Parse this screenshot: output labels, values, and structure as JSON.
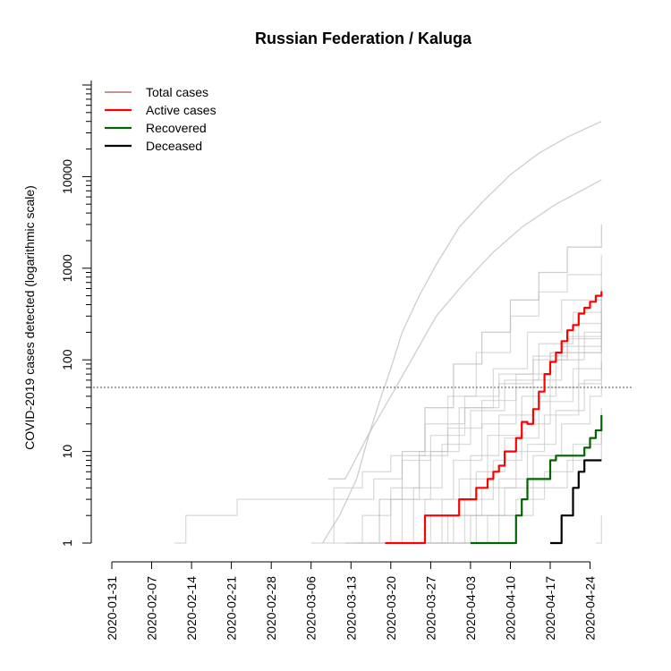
{
  "chart_data": {
    "type": "line",
    "title": "Russian Federation / Kaluga",
    "ylabel": "COVID-2019 cases detected (logarithmic scale)",
    "xlabel": "",
    "y_scale": "log",
    "ylim": [
      1,
      100000
    ],
    "xlim": [
      "2020-01-31",
      "2020-04-28"
    ],
    "y_ticks": [
      1,
      10,
      100,
      1000,
      10000
    ],
    "y_tick_labels": [
      "1",
      "10",
      "100",
      "1000",
      "10000"
    ],
    "x_ticks": [
      "2020-01-31",
      "2020-02-07",
      "2020-02-14",
      "2020-02-21",
      "2020-02-28",
      "2020-03-06",
      "2020-03-13",
      "2020-03-20",
      "2020-03-27",
      "2020-04-03",
      "2020-04-10",
      "2020-04-17",
      "2020-04-24"
    ],
    "threshold": 50,
    "legend_position": "top-left",
    "legend": [
      {
        "label": "Total cases",
        "color": "#a0524d"
      },
      {
        "label": "Active cases",
        "color": "#ff0000"
      },
      {
        "label": "Recovered",
        "color": "#006400"
      },
      {
        "label": "Deceased",
        "color": "#000000"
      }
    ],
    "series": [
      {
        "name": "Active cases",
        "color": "#ff0000",
        "points": [
          [
            "2020-03-19",
            1
          ],
          [
            "2020-03-25",
            1
          ],
          [
            "2020-03-26",
            2
          ],
          [
            "2020-03-31",
            2
          ],
          [
            "2020-04-01",
            3
          ],
          [
            "2020-04-03",
            3
          ],
          [
            "2020-04-04",
            4
          ],
          [
            "2020-04-05",
            4
          ],
          [
            "2020-04-06",
            5
          ],
          [
            "2020-04-07",
            6
          ],
          [
            "2020-04-08",
            7
          ],
          [
            "2020-04-09",
            10
          ],
          [
            "2020-04-10",
            10
          ],
          [
            "2020-04-11",
            14
          ],
          [
            "2020-04-12",
            21
          ],
          [
            "2020-04-13",
            20
          ],
          [
            "2020-04-14",
            29
          ],
          [
            "2020-04-15",
            45
          ],
          [
            "2020-04-16",
            70
          ],
          [
            "2020-04-17",
            95
          ],
          [
            "2020-04-18",
            120
          ],
          [
            "2020-04-19",
            160
          ],
          [
            "2020-04-20",
            210
          ],
          [
            "2020-04-21",
            240
          ],
          [
            "2020-04-22",
            320
          ],
          [
            "2020-04-23",
            370
          ],
          [
            "2020-04-24",
            430
          ],
          [
            "2020-04-25",
            500
          ],
          [
            "2020-04-26",
            560
          ]
        ]
      },
      {
        "name": "Recovered",
        "color": "#006400",
        "points": [
          [
            "2020-04-03",
            1
          ],
          [
            "2020-04-10",
            1
          ],
          [
            "2020-04-11",
            2
          ],
          [
            "2020-04-12",
            3
          ],
          [
            "2020-04-13",
            5
          ],
          [
            "2020-04-16",
            5
          ],
          [
            "2020-04-17",
            8
          ],
          [
            "2020-04-18",
            9
          ],
          [
            "2020-04-22",
            9
          ],
          [
            "2020-04-23",
            11
          ],
          [
            "2020-04-24",
            14
          ],
          [
            "2020-04-25",
            17
          ],
          [
            "2020-04-26",
            25
          ]
        ]
      },
      {
        "name": "Deceased",
        "color": "#000000",
        "points": [
          [
            "2020-04-17",
            1
          ],
          [
            "2020-04-18",
            1
          ],
          [
            "2020-04-19",
            2
          ],
          [
            "2020-04-20",
            2
          ],
          [
            "2020-04-21",
            4
          ],
          [
            "2020-04-22",
            6
          ],
          [
            "2020-04-23",
            8
          ],
          [
            "2020-04-26",
            8
          ]
        ]
      }
    ],
    "background_series_color": "#bdbdbd",
    "background_series": [
      [
        [
          "2020-03-08",
          1
        ],
        [
          "2020-03-11",
          2
        ],
        [
          "2020-03-14",
          5
        ],
        [
          "2020-03-16",
          14
        ],
        [
          "2020-03-18",
          35
        ],
        [
          "2020-03-20",
          80
        ],
        [
          "2020-03-22",
          200
        ],
        [
          "2020-03-25",
          500
        ],
        [
          "2020-03-28",
          1100
        ],
        [
          "2020-04-01",
          2800
        ],
        [
          "2020-04-05",
          5200
        ],
        [
          "2020-04-10",
          10500
        ],
        [
          "2020-04-15",
          18000
        ],
        [
          "2020-04-20",
          27000
        ],
        [
          "2020-04-26",
          40000
        ]
      ],
      [
        [
          "2020-03-09",
          5
        ],
        [
          "2020-03-12",
          5
        ],
        [
          "2020-03-16",
          15
        ],
        [
          "2020-03-20",
          40
        ],
        [
          "2020-03-24",
          110
        ],
        [
          "2020-03-28",
          300
        ],
        [
          "2020-04-02",
          700
        ],
        [
          "2020-04-07",
          1500
        ],
        [
          "2020-04-12",
          2800
        ],
        [
          "2020-04-18",
          5000
        ],
        [
          "2020-04-26",
          9200
        ]
      ],
      [
        [
          "2020-03-12",
          1
        ],
        [
          "2020-03-18",
          3
        ],
        [
          "2020-03-22",
          10
        ],
        [
          "2020-03-26",
          30
        ],
        [
          "2020-03-31",
          90
        ],
        [
          "2020-04-05",
          200
        ],
        [
          "2020-04-10",
          450
        ],
        [
          "2020-04-15",
          900
        ],
        [
          "2020-04-20",
          1700
        ],
        [
          "2020-04-26",
          3000
        ]
      ],
      [
        [
          "2020-03-14",
          1
        ],
        [
          "2020-03-20",
          3
        ],
        [
          "2020-03-25",
          10
        ],
        [
          "2020-03-30",
          40
        ],
        [
          "2020-04-04",
          120
        ],
        [
          "2020-04-10",
          300
        ],
        [
          "2020-04-15",
          550
        ],
        [
          "2020-04-20",
          850
        ],
        [
          "2020-04-26",
          1400
        ]
      ],
      [
        [
          "2020-03-16",
          1
        ],
        [
          "2020-03-22",
          3
        ],
        [
          "2020-03-27",
          10
        ],
        [
          "2020-04-01",
          30
        ],
        [
          "2020-04-07",
          80
        ],
        [
          "2020-04-13",
          200
        ],
        [
          "2020-04-19",
          450
        ],
        [
          "2020-04-26",
          900
        ]
      ],
      [
        [
          "2020-03-18",
          1
        ],
        [
          "2020-03-24",
          4
        ],
        [
          "2020-03-29",
          12
        ],
        [
          "2020-04-03",
          28
        ],
        [
          "2020-04-09",
          60
        ],
        [
          "2020-04-15",
          150
        ],
        [
          "2020-04-21",
          330
        ],
        [
          "2020-04-26",
          620
        ]
      ],
      [
        [
          "2020-03-20",
          1
        ],
        [
          "2020-03-26",
          3
        ],
        [
          "2020-03-31",
          8
        ],
        [
          "2020-04-05",
          20
        ],
        [
          "2020-04-11",
          50
        ],
        [
          "2020-04-17",
          120
        ],
        [
          "2020-04-22",
          250
        ],
        [
          "2020-04-26",
          480
        ]
      ],
      [
        [
          "2020-03-21",
          1
        ],
        [
          "2020-03-27",
          2
        ],
        [
          "2020-04-01",
          5
        ],
        [
          "2020-04-06",
          15
        ],
        [
          "2020-04-12",
          40
        ],
        [
          "2020-04-18",
          100
        ],
        [
          "2020-04-23",
          200
        ],
        [
          "2020-04-26",
          330
        ]
      ],
      [
        [
          "2020-03-23",
          1
        ],
        [
          "2020-03-29",
          3
        ],
        [
          "2020-04-03",
          9
        ],
        [
          "2020-04-08",
          25
        ],
        [
          "2020-04-14",
          60
        ],
        [
          "2020-04-19",
          140
        ],
        [
          "2020-04-26",
          380
        ]
      ],
      [
        [
          "2020-03-24",
          1
        ],
        [
          "2020-03-30",
          2
        ],
        [
          "2020-04-04",
          6
        ],
        [
          "2020-04-09",
          14
        ],
        [
          "2020-04-15",
          35
        ],
        [
          "2020-04-21",
          80
        ],
        [
          "2020-04-26",
          160
        ]
      ],
      [
        [
          "2020-03-25",
          1
        ],
        [
          "2020-03-31",
          2
        ],
        [
          "2020-04-05",
          4
        ],
        [
          "2020-04-11",
          10
        ],
        [
          "2020-04-16",
          25
        ],
        [
          "2020-04-22",
          55
        ],
        [
          "2020-04-26",
          100
        ]
      ],
      [
        [
          "2020-03-27",
          1
        ],
        [
          "2020-04-02",
          3
        ],
        [
          "2020-04-07",
          8
        ],
        [
          "2020-04-12",
          20
        ],
        [
          "2020-04-17",
          50
        ],
        [
          "2020-04-22",
          120
        ],
        [
          "2020-04-26",
          250
        ]
      ],
      [
        [
          "2020-03-28",
          1
        ],
        [
          "2020-04-03",
          2
        ],
        [
          "2020-04-08",
          5
        ],
        [
          "2020-04-13",
          12
        ],
        [
          "2020-04-18",
          28
        ],
        [
          "2020-04-23",
          60
        ],
        [
          "2020-04-26",
          90
        ]
      ],
      [
        [
          "2020-03-29",
          1
        ],
        [
          "2020-04-04",
          2
        ],
        [
          "2020-04-09",
          4
        ],
        [
          "2020-04-14",
          9
        ],
        [
          "2020-04-19",
          20
        ],
        [
          "2020-04-24",
          40
        ],
        [
          "2020-04-26",
          55
        ]
      ],
      [
        [
          "2020-03-31",
          1
        ],
        [
          "2020-04-06",
          2
        ],
        [
          "2020-04-11",
          3
        ],
        [
          "2020-04-16",
          6
        ],
        [
          "2020-04-21",
          12
        ],
        [
          "2020-04-26",
          30
        ]
      ],
      [
        [
          "2020-04-02",
          1
        ],
        [
          "2020-04-08",
          2
        ],
        [
          "2020-04-14",
          4
        ],
        [
          "2020-04-20",
          8
        ],
        [
          "2020-04-26",
          18
        ]
      ],
      [
        [
          "2020-02-11",
          1
        ],
        [
          "2020-02-13",
          2
        ],
        [
          "2020-02-20",
          2
        ],
        [
          "2020-02-22",
          3
        ],
        [
          "2020-03-05",
          3
        ],
        [
          "2020-03-10",
          4
        ],
        [
          "2020-03-15",
          6
        ],
        [
          "2020-03-20",
          9
        ],
        [
          "2020-03-26",
          20
        ],
        [
          "2020-04-02",
          40
        ],
        [
          "2020-04-08",
          70
        ],
        [
          "2020-04-14",
          110
        ],
        [
          "2020-04-20",
          170
        ],
        [
          "2020-04-26",
          260
        ]
      ],
      [
        [
          "2020-03-06",
          1
        ],
        [
          "2020-03-10",
          3
        ],
        [
          "2020-03-14",
          3
        ],
        [
          "2020-03-17",
          5
        ],
        [
          "2020-03-22",
          8
        ],
        [
          "2020-03-27",
          15
        ],
        [
          "2020-04-02",
          30
        ],
        [
          "2020-04-08",
          55
        ],
        [
          "2020-04-14",
          100
        ],
        [
          "2020-04-20",
          180
        ],
        [
          "2020-04-26",
          300
        ]
      ],
      [
        [
          "2020-03-10",
          1
        ],
        [
          "2020-03-15",
          2
        ],
        [
          "2020-03-20",
          4
        ],
        [
          "2020-03-25",
          9
        ],
        [
          "2020-03-30",
          18
        ],
        [
          "2020-04-05",
          36
        ],
        [
          "2020-04-11",
          70
        ],
        [
          "2020-04-17",
          120
        ],
        [
          "2020-04-26",
          220
        ]
      ],
      [
        [
          "2020-04-25",
          1
        ],
        [
          "2020-04-26",
          2
        ]
      ]
    ]
  }
}
